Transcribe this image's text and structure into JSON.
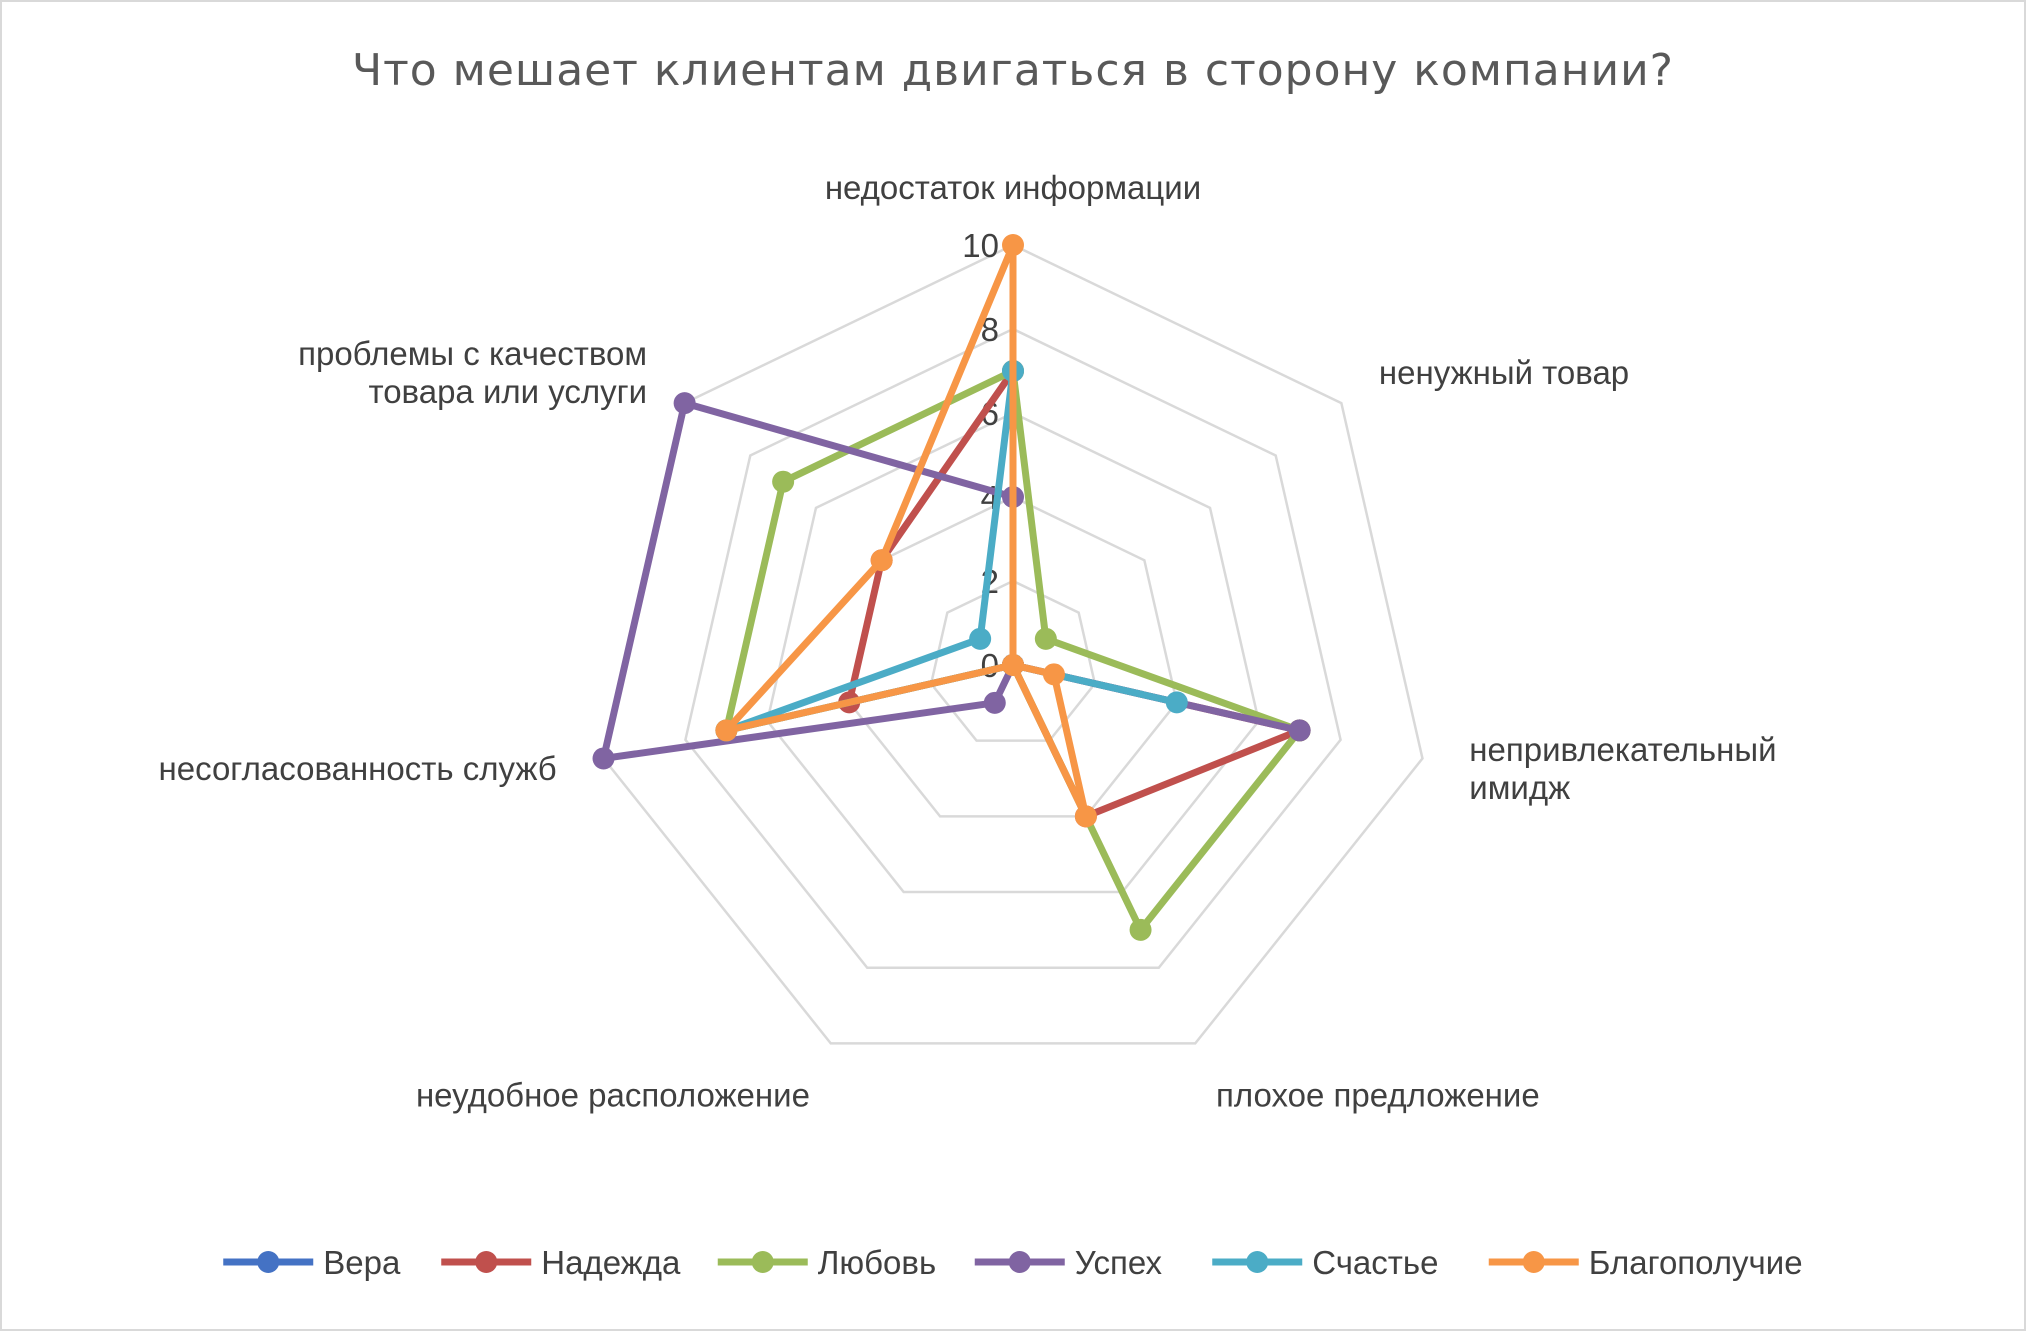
{
  "chart_data": {
    "type": "radar",
    "title": "Что мешает клиентам двигаться в сторону компании?",
    "categories": [
      "недостаток информации",
      "ненужный товар",
      "непривлекательный имидж",
      "плохое предложение",
      "неудобное расположение",
      "несогласованность служб",
      "проблемы с качеством товара или услуги"
    ],
    "category_lines": [
      [
        "недостаток информации"
      ],
      [
        "ненужный товар"
      ],
      [
        "непривлекательный",
        "имидж"
      ],
      [
        "плохое предложение"
      ],
      [
        "неудобное расположение"
      ],
      [
        "несогласованность служб"
      ],
      [
        "проблемы с качеством",
        "товара или услуги"
      ]
    ],
    "rlim": [
      0,
      10
    ],
    "ticks": [
      "0",
      "2",
      "4",
      "6",
      "8",
      "10"
    ],
    "grid": true,
    "legend_position": "bottom",
    "series": [
      {
        "name": "Вера",
        "color": "#4472c4",
        "values": [
          0,
          0,
          0,
          0,
          0,
          0,
          0
        ]
      },
      {
        "name": "Надежда",
        "color": "#c0504d",
        "values": [
          7,
          0,
          7,
          4,
          0,
          4,
          4
        ]
      },
      {
        "name": "Любовь",
        "color": "#9bbb59",
        "values": [
          7,
          1,
          7,
          7,
          0,
          7,
          7
        ]
      },
      {
        "name": "Успех",
        "color": "#8064a2",
        "values": [
          4,
          0,
          7,
          0,
          1,
          10,
          10
        ]
      },
      {
        "name": "Счастье",
        "color": "#4bacc6",
        "values": [
          7,
          0,
          4,
          0,
          0,
          7,
          1
        ]
      },
      {
        "name": "Благополучие",
        "color": "#f79646",
        "values": [
          10,
          0,
          1,
          4,
          0,
          7,
          4
        ]
      }
    ]
  }
}
